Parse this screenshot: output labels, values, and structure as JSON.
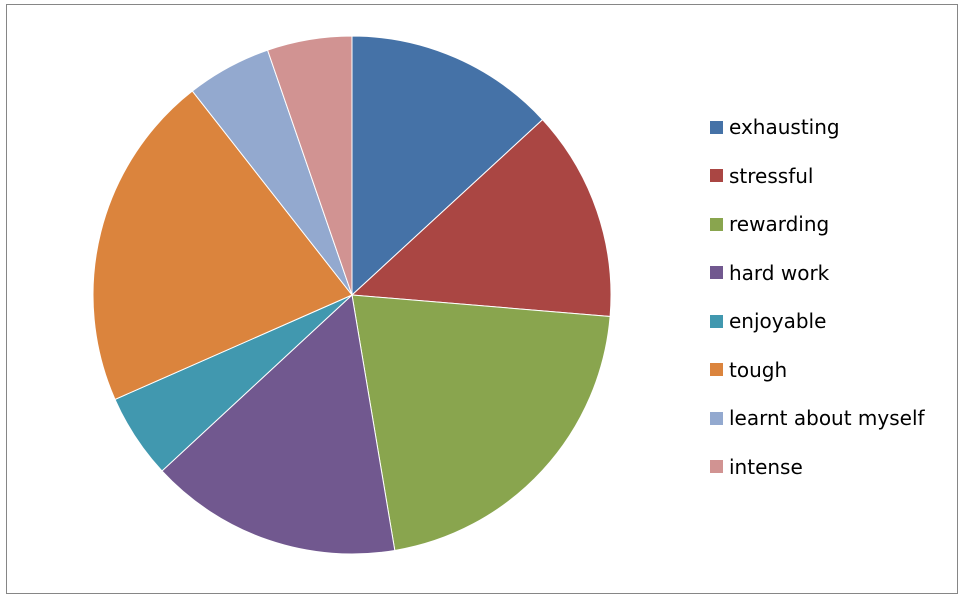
{
  "chart_data": {
    "type": "pie",
    "title": "",
    "legend_position": "right",
    "slices": [
      {
        "label": "exhausting",
        "value": 13.2,
        "color": "#4572A7"
      },
      {
        "label": "stressful",
        "value": 13.2,
        "color": "#AA4643"
      },
      {
        "label": "rewarding",
        "value": 21.1,
        "color": "#89A54E"
      },
      {
        "label": "hard work",
        "value": 15.8,
        "color": "#71588F"
      },
      {
        "label": "enjoyable",
        "value": 5.3,
        "color": "#4198AF"
      },
      {
        "label": "tough",
        "value": 21.1,
        "color": "#DB843D"
      },
      {
        "label": "learnt about myself",
        "value": 5.3,
        "color": "#93A9CF"
      },
      {
        "label": "intense",
        "value": 5.3,
        "color": "#D19392"
      }
    ]
  }
}
